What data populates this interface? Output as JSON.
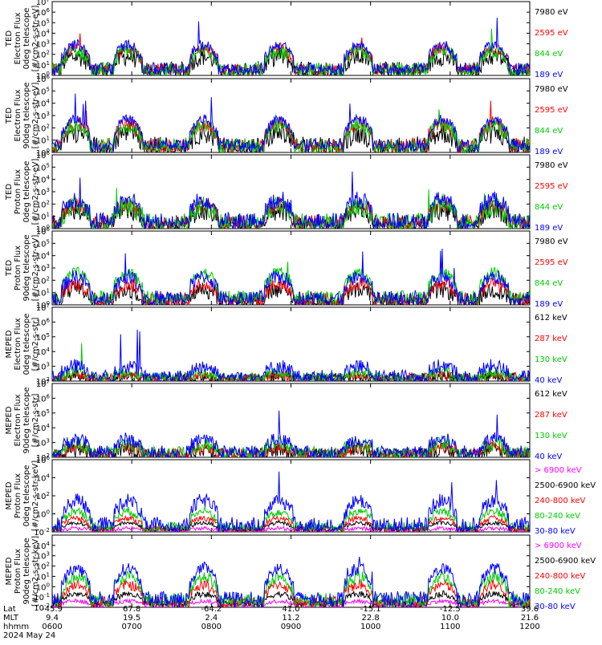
{
  "chart_data": {
    "type": "line",
    "title": "",
    "x_axis": {
      "rows": [
        {
          "label": "Lat",
          "values": [
            "-45.9",
            "67.8",
            "-64.2",
            "41.0",
            "-15.1",
            "-12.5",
            "39.6"
          ]
        },
        {
          "label": "MLT",
          "values": [
            "9.4",
            "19.5",
            "2.4",
            "11.2",
            "22.8",
            "10.0",
            "21.6"
          ]
        },
        {
          "label": "hhmm",
          "values": [
            "0600",
            "0700",
            "0800",
            "0900",
            "1000",
            "1100",
            "1200"
          ]
        }
      ],
      "date": "2024 May 24",
      "range_hours": [
        6,
        12
      ]
    },
    "panels": [
      {
        "ylabel_lines": [
          "TED",
          "Electron Flux",
          "0deg telescope",
          "[#/cm2-s-str-eV]"
        ],
        "ylog": true,
        "ylim_exp": [
          0,
          7
        ],
        "tick_labels": [
          "10^0",
          "10^1",
          "10^2",
          "10^3",
          "10^4",
          "10^5",
          "10^6",
          "10^7"
        ],
        "legend": [
          {
            "label": "7980 eV",
            "color": "#000000"
          },
          {
            "label": "2595 eV",
            "color": "#ff0000"
          },
          {
            "label": "844 eV",
            "color": "#00cc00"
          },
          {
            "label": "189 eV",
            "color": "#0000ff"
          }
        ],
        "series": [
          {
            "color": "#0000ff",
            "level": 2.9,
            "noise": 0.5,
            "spike_prob": 0.012,
            "spike_amp": 2.2
          },
          {
            "color": "#00cc00",
            "level": 2.3,
            "noise": 0.7,
            "spike_prob": 0.006,
            "spike_amp": 2.0
          },
          {
            "color": "#ff0000",
            "level": 2.6,
            "noise": 0.5,
            "spike_prob": 0.004,
            "spike_amp": 1.5
          },
          {
            "color": "#000000",
            "level": 1.8,
            "noise": 0.9,
            "spike_prob": 0.0,
            "spike_amp": 0.0
          }
        ]
      },
      {
        "ylabel_lines": [
          "TED",
          "Electron Flux",
          "90deg telescope",
          "[#/cm2-s-str-eV]"
        ],
        "ylog": true,
        "ylim_exp": [
          0,
          6
        ],
        "tick_labels": [
          "10^0",
          "10^1",
          "10^2",
          "10^3",
          "10^4",
          "10^5",
          "10^6"
        ],
        "legend": [
          {
            "label": "7980 eV",
            "color": "#000000"
          },
          {
            "label": "2595 eV",
            "color": "#ff0000"
          },
          {
            "label": "844 eV",
            "color": "#00cc00"
          },
          {
            "label": "189 eV",
            "color": "#0000ff"
          }
        ],
        "series": [
          {
            "color": "#0000ff",
            "level": 2.7,
            "noise": 0.4,
            "spike_prob": 0.01,
            "spike_amp": 1.8
          },
          {
            "color": "#00cc00",
            "level": 2.2,
            "noise": 0.6,
            "spike_prob": 0.006,
            "spike_amp": 1.8
          },
          {
            "color": "#ff0000",
            "level": 2.3,
            "noise": 0.6,
            "spike_prob": 0.004,
            "spike_amp": 1.4
          },
          {
            "color": "#000000",
            "level": 1.6,
            "noise": 0.9,
            "spike_prob": 0.0,
            "spike_amp": 0.0
          }
        ]
      },
      {
        "ylabel_lines": [
          "TED",
          "Proton Flux",
          "0deg telescope",
          "[#/cm2-s-str-eV]"
        ],
        "ylog": true,
        "ylim_exp": [
          0,
          6
        ],
        "tick_labels": [
          "10^0",
          "10^1",
          "10^2",
          "10^3",
          "10^4",
          "10^5",
          "10^6"
        ],
        "legend": [
          {
            "label": "7980 eV",
            "color": "#000000"
          },
          {
            "label": "2595 eV",
            "color": "#ff0000"
          },
          {
            "label": "844 eV",
            "color": "#00cc00"
          },
          {
            "label": "189 eV",
            "color": "#0000ff"
          }
        ],
        "series": [
          {
            "color": "#0000ff",
            "level": 2.4,
            "noise": 0.7,
            "spike_prob": 0.015,
            "spike_amp": 2.0
          },
          {
            "color": "#00cc00",
            "level": 1.8,
            "noise": 0.8,
            "spike_prob": 0.01,
            "spike_amp": 1.5
          },
          {
            "color": "#ff0000",
            "level": 2.0,
            "noise": 0.6,
            "spike_prob": 0.0,
            "spike_amp": 0.0
          },
          {
            "color": "#000000",
            "level": 1.5,
            "noise": 0.8,
            "spike_prob": 0.0,
            "spike_amp": 0.0
          }
        ]
      },
      {
        "ylabel_lines": [
          "TED",
          "Proton Flux",
          "90deg telescope",
          "[#/cm2-s-str-eV]"
        ],
        "ylog": true,
        "ylim_exp": [
          0,
          6
        ],
        "tick_labels": [
          "10^0",
          "10^1",
          "10^2",
          "10^3",
          "10^4",
          "10^5",
          "10^6"
        ],
        "legend": [
          {
            "label": "7980 eV",
            "color": "#000000"
          },
          {
            "label": "2595 eV",
            "color": "#ff0000"
          },
          {
            "label": "844 eV",
            "color": "#00cc00"
          },
          {
            "label": "189 eV",
            "color": "#0000ff"
          }
        ],
        "series": [
          {
            "color": "#0000ff",
            "level": 2.3,
            "noise": 0.6,
            "spike_prob": 0.012,
            "spike_amp": 1.8
          },
          {
            "color": "#00cc00",
            "level": 2.6,
            "noise": 0.5,
            "spike_prob": 0.004,
            "spike_amp": 1.0
          },
          {
            "color": "#ff0000",
            "level": 1.7,
            "noise": 0.6,
            "spike_prob": 0.0,
            "spike_amp": 0.0
          },
          {
            "color": "#000000",
            "level": 1.2,
            "noise": 0.7,
            "spike_prob": 0.0,
            "spike_amp": 0.0
          }
        ]
      },
      {
        "ylabel_lines": [
          "MEPED",
          "Electron Flux",
          "0deg telescope",
          "[#/cm2-s-str]"
        ],
        "ylog": true,
        "ylim_exp": [
          2,
          7
        ],
        "tick_labels": [
          "10^2",
          "10^3",
          "10^4",
          "10^5",
          "10^6",
          "10^7"
        ],
        "legend": [
          {
            "label": "612 keV",
            "color": "#000000"
          },
          {
            "label": "287 keV",
            "color": "#ff0000"
          },
          {
            "label": "130 keV",
            "color": "#00cc00"
          },
          {
            "label": "40 keV",
            "color": "#0000ff"
          }
        ],
        "series": [
          {
            "color": "#0000ff",
            "level": 3.0,
            "noise": 0.5,
            "spike_prob": 0.02,
            "spike_amp": 2.4
          },
          {
            "color": "#00cc00",
            "level": 2.6,
            "noise": 0.4,
            "spike_prob": 0.01,
            "spike_amp": 1.8
          },
          {
            "color": "#ff0000",
            "level": 2.4,
            "noise": 0.3,
            "spike_prob": 0.0,
            "spike_amp": 0.0
          },
          {
            "color": "#000000",
            "level": 2.3,
            "noise": 0.4,
            "spike_prob": 0.0,
            "spike_amp": 0.0
          }
        ]
      },
      {
        "ylabel_lines": [
          "MEPED",
          "Electron Flux",
          "90deg telescope",
          "[#/cm2-s-str]"
        ],
        "ylog": true,
        "ylim_exp": [
          2,
          7
        ],
        "tick_labels": [
          "10^2",
          "10^3",
          "10^4",
          "10^5",
          "10^6",
          "10^7"
        ],
        "legend": [
          {
            "label": "612 keV",
            "color": "#000000"
          },
          {
            "label": "287 keV",
            "color": "#ff0000"
          },
          {
            "label": "130 keV",
            "color": "#00cc00"
          },
          {
            "label": "40 keV",
            "color": "#0000ff"
          }
        ],
        "series": [
          {
            "color": "#0000ff",
            "level": 3.2,
            "noise": 0.5,
            "spike_prob": 0.008,
            "spike_amp": 1.5
          },
          {
            "color": "#00cc00",
            "level": 2.9,
            "noise": 0.5,
            "spike_prob": 0.004,
            "spike_amp": 1.0
          },
          {
            "color": "#ff0000",
            "level": 2.7,
            "noise": 0.5,
            "spike_prob": 0.0,
            "spike_amp": 0.0
          },
          {
            "color": "#000000",
            "level": 2.5,
            "noise": 0.5,
            "spike_prob": 0.0,
            "spike_amp": 0.0
          }
        ]
      },
      {
        "ylabel_lines": [
          "MEPED",
          "Proton Flux",
          "0deg telescope",
          "[#/cm2-s-str-keV]"
        ],
        "ylog": true,
        "ylim_exp": [
          -2,
          6
        ],
        "tick_labels": [
          "10^-2",
          "10^0",
          "10^2",
          "10^4",
          "10^6"
        ],
        "legend": [
          {
            "label": "> 6900 keV",
            "color": "#ff00ff"
          },
          {
            "label": "2500-6900 keV",
            "color": "#000000"
          },
          {
            "label": "240-800 keV",
            "color": "#ff0000"
          },
          {
            "label": "80-240 keV",
            "color": "#00cc00"
          },
          {
            "label": "30-80 keV",
            "color": "#0000ff"
          }
        ],
        "series": [
          {
            "color": "#0000ff",
            "level": 1.5,
            "noise": 0.8,
            "spike_prob": 0.01,
            "spike_amp": 2.5
          },
          {
            "color": "#00cc00",
            "level": 0.3,
            "noise": 0.5,
            "spike_prob": 0.0,
            "spike_amp": 0.0
          },
          {
            "color": "#ff0000",
            "level": -0.5,
            "noise": 0.3,
            "spike_prob": 0.0,
            "spike_amp": 0.0
          },
          {
            "color": "#000000",
            "level": -1.0,
            "noise": 0.2,
            "spike_prob": 0.0,
            "spike_amp": 0.0
          },
          {
            "color": "#ff00ff",
            "level": -1.6,
            "noise": 0.2,
            "spike_prob": 0.0,
            "spike_amp": 0.0
          }
        ]
      },
      {
        "ylabel_lines": [
          "MEPED",
          "Proton Flux",
          "90deg telescope",
          "[#/cm2-s-str-keV]"
        ],
        "ylog": true,
        "ylim_exp": [
          -2,
          5
        ],
        "tick_labels": [
          "10^-2",
          "10^-1",
          "10^0",
          "10^1",
          "10^2",
          "10^3",
          "10^4"
        ],
        "legend": [
          {
            "label": "> 6900 keV",
            "color": "#ff00ff"
          },
          {
            "label": "2500-6900 keV",
            "color": "#000000"
          },
          {
            "label": "240-800 keV",
            "color": "#ff0000"
          },
          {
            "label": "80-240 keV",
            "color": "#00cc00"
          },
          {
            "label": "30-80 keV",
            "color": "#0000ff"
          }
        ],
        "series": [
          {
            "color": "#0000ff",
            "level": 1.8,
            "noise": 0.6,
            "spike_prob": 0.006,
            "spike_amp": 1.5
          },
          {
            "color": "#00cc00",
            "level": 1.0,
            "noise": 0.6,
            "spike_prob": 0.0,
            "spike_amp": 0.0
          },
          {
            "color": "#ff0000",
            "level": 0.2,
            "noise": 0.5,
            "spike_prob": 0.0,
            "spike_amp": 0.0
          },
          {
            "color": "#000000",
            "level": -0.7,
            "noise": 0.3,
            "spike_prob": 0.0,
            "spike_amp": 0.0
          },
          {
            "color": "#ff00ff",
            "level": -1.4,
            "noise": 0.2,
            "spike_prob": 0.0,
            "spike_amp": 0.0
          }
        ]
      }
    ],
    "pass_centers_hours": [
      6.3,
      6.95,
      7.9,
      8.85,
      9.85,
      10.9,
      11.55
    ],
    "pass_width_hours": 0.18
  }
}
